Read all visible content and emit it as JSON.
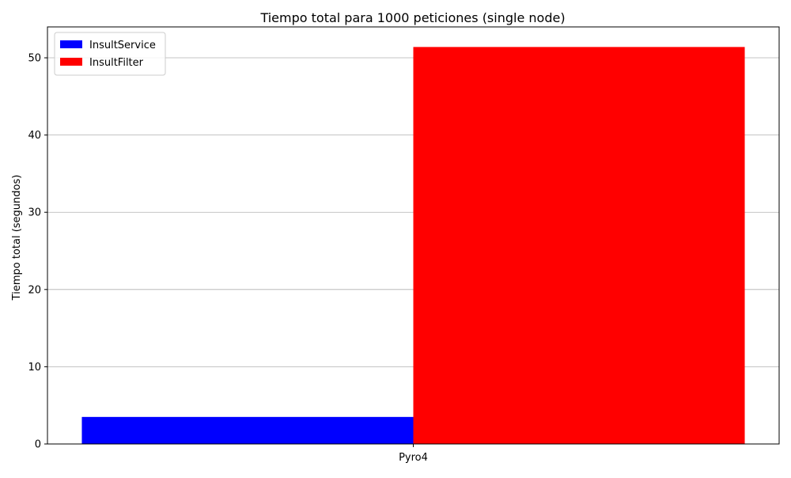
{
  "chart_data": {
    "type": "bar",
    "title": "Tiempo total para 1000 peticiones (single node)",
    "xlabel": "",
    "ylabel": "Tiempo total (segundos)",
    "categories": [
      "Pyro4"
    ],
    "series": [
      {
        "name": "InsultService",
        "values": [
          3.5
        ],
        "color": "#0000ff"
      },
      {
        "name": "InsultFilter",
        "values": [
          51.4
        ],
        "color": "#ff0000"
      }
    ],
    "ylim": [
      0,
      54
    ],
    "yticks": [
      0,
      10,
      20,
      30,
      40,
      50
    ],
    "grid": "y",
    "legend_position": "top-left"
  }
}
